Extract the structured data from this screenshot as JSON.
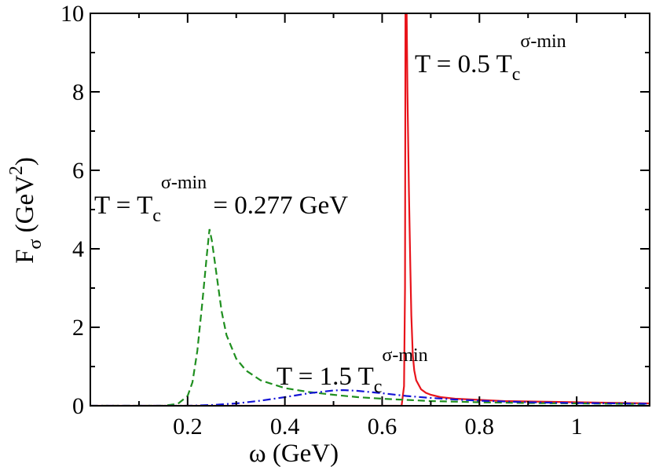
{
  "chart_data": {
    "type": "line",
    "xlabel": "ω (GeV)",
    "ylabel": "F_σ (GeV^2)",
    "ylabel_parts": {
      "main": "F",
      "sub": "σ",
      "unit_open": " (GeV",
      "unit_sup": "2",
      "unit_close": ")"
    },
    "xlabel_parts": {
      "main": "ω (GeV)"
    },
    "xlim": [
      0.0,
      1.15
    ],
    "ylim": [
      0,
      10
    ],
    "x_ticks": [
      0.2,
      0.4,
      0.6,
      0.8,
      1
    ],
    "x_tick_labels": [
      "0.2",
      "0.4",
      "0.6",
      "0.8",
      "1"
    ],
    "y_ticks": [
      0,
      2,
      4,
      6,
      8,
      10
    ],
    "y_tick_labels": [
      "0",
      "2",
      "4",
      "6",
      "8",
      "10"
    ],
    "grid": false,
    "series": [
      {
        "color": "#e8141b",
        "style": "solid",
        "x": [
          0.0,
          0.2,
          0.4,
          0.6,
          0.64,
          0.645,
          0.647,
          0.648,
          0.65,
          0.652,
          0.655,
          0.658,
          0.66,
          0.663,
          0.666,
          0.67,
          0.68,
          0.69,
          0.7,
          0.72,
          0.75,
          0.8,
          0.85,
          0.9,
          0.95,
          1.0,
          1.05,
          1.1,
          1.15
        ],
        "y": [
          0,
          0,
          0,
          0,
          0,
          0.5,
          3.0,
          10.5,
          10.5,
          8.0,
          5.5,
          3.5,
          2.3,
          1.3,
          0.9,
          0.65,
          0.42,
          0.33,
          0.28,
          0.22,
          0.18,
          0.15,
          0.12,
          0.11,
          0.1,
          0.09,
          0.08,
          0.07,
          0.06
        ]
      },
      {
        "color": "#1f8f1f",
        "style": "dashed",
        "x": [
          0.0,
          0.1,
          0.15,
          0.18,
          0.2,
          0.21,
          0.22,
          0.23,
          0.24,
          0.245,
          0.25,
          0.26,
          0.27,
          0.28,
          0.3,
          0.32,
          0.35,
          0.4,
          0.45,
          0.5,
          0.55,
          0.6,
          0.65,
          0.7,
          0.8,
          0.9,
          1.0,
          1.1,
          1.15
        ],
        "y": [
          0,
          0,
          0.0,
          0.05,
          0.25,
          0.6,
          1.4,
          2.6,
          3.9,
          4.5,
          4.2,
          3.3,
          2.4,
          1.8,
          1.2,
          0.9,
          0.65,
          0.45,
          0.35,
          0.28,
          0.22,
          0.18,
          0.15,
          0.12,
          0.09,
          0.07,
          0.06,
          0.05,
          0.04
        ]
      },
      {
        "color": "#1414d6",
        "style": "dashdot",
        "x": [
          0.0,
          0.1,
          0.2,
          0.25,
          0.3,
          0.35,
          0.4,
          0.45,
          0.5,
          0.52,
          0.55,
          0.6,
          0.65,
          0.7,
          0.75,
          0.8,
          0.9,
          1.0,
          1.1,
          1.15
        ],
        "y": [
          0,
          0,
          0.0,
          0.02,
          0.06,
          0.13,
          0.22,
          0.32,
          0.39,
          0.4,
          0.38,
          0.32,
          0.25,
          0.2,
          0.16,
          0.13,
          0.09,
          0.07,
          0.06,
          0.05
        ]
      }
    ],
    "annotations": [
      {
        "id": "low",
        "main": "T = 0.5 T",
        "sub": "c",
        "sup": "σ-min",
        "tail": ""
      },
      {
        "id": "crit",
        "main": "T =  T",
        "sub": "c",
        "sup": "σ-min",
        "tail": " = 0.277 GeV"
      },
      {
        "id": "high",
        "main": "T = 1.5 T",
        "sub": "c",
        "sup": "σ-min",
        "tail": ""
      }
    ]
  }
}
